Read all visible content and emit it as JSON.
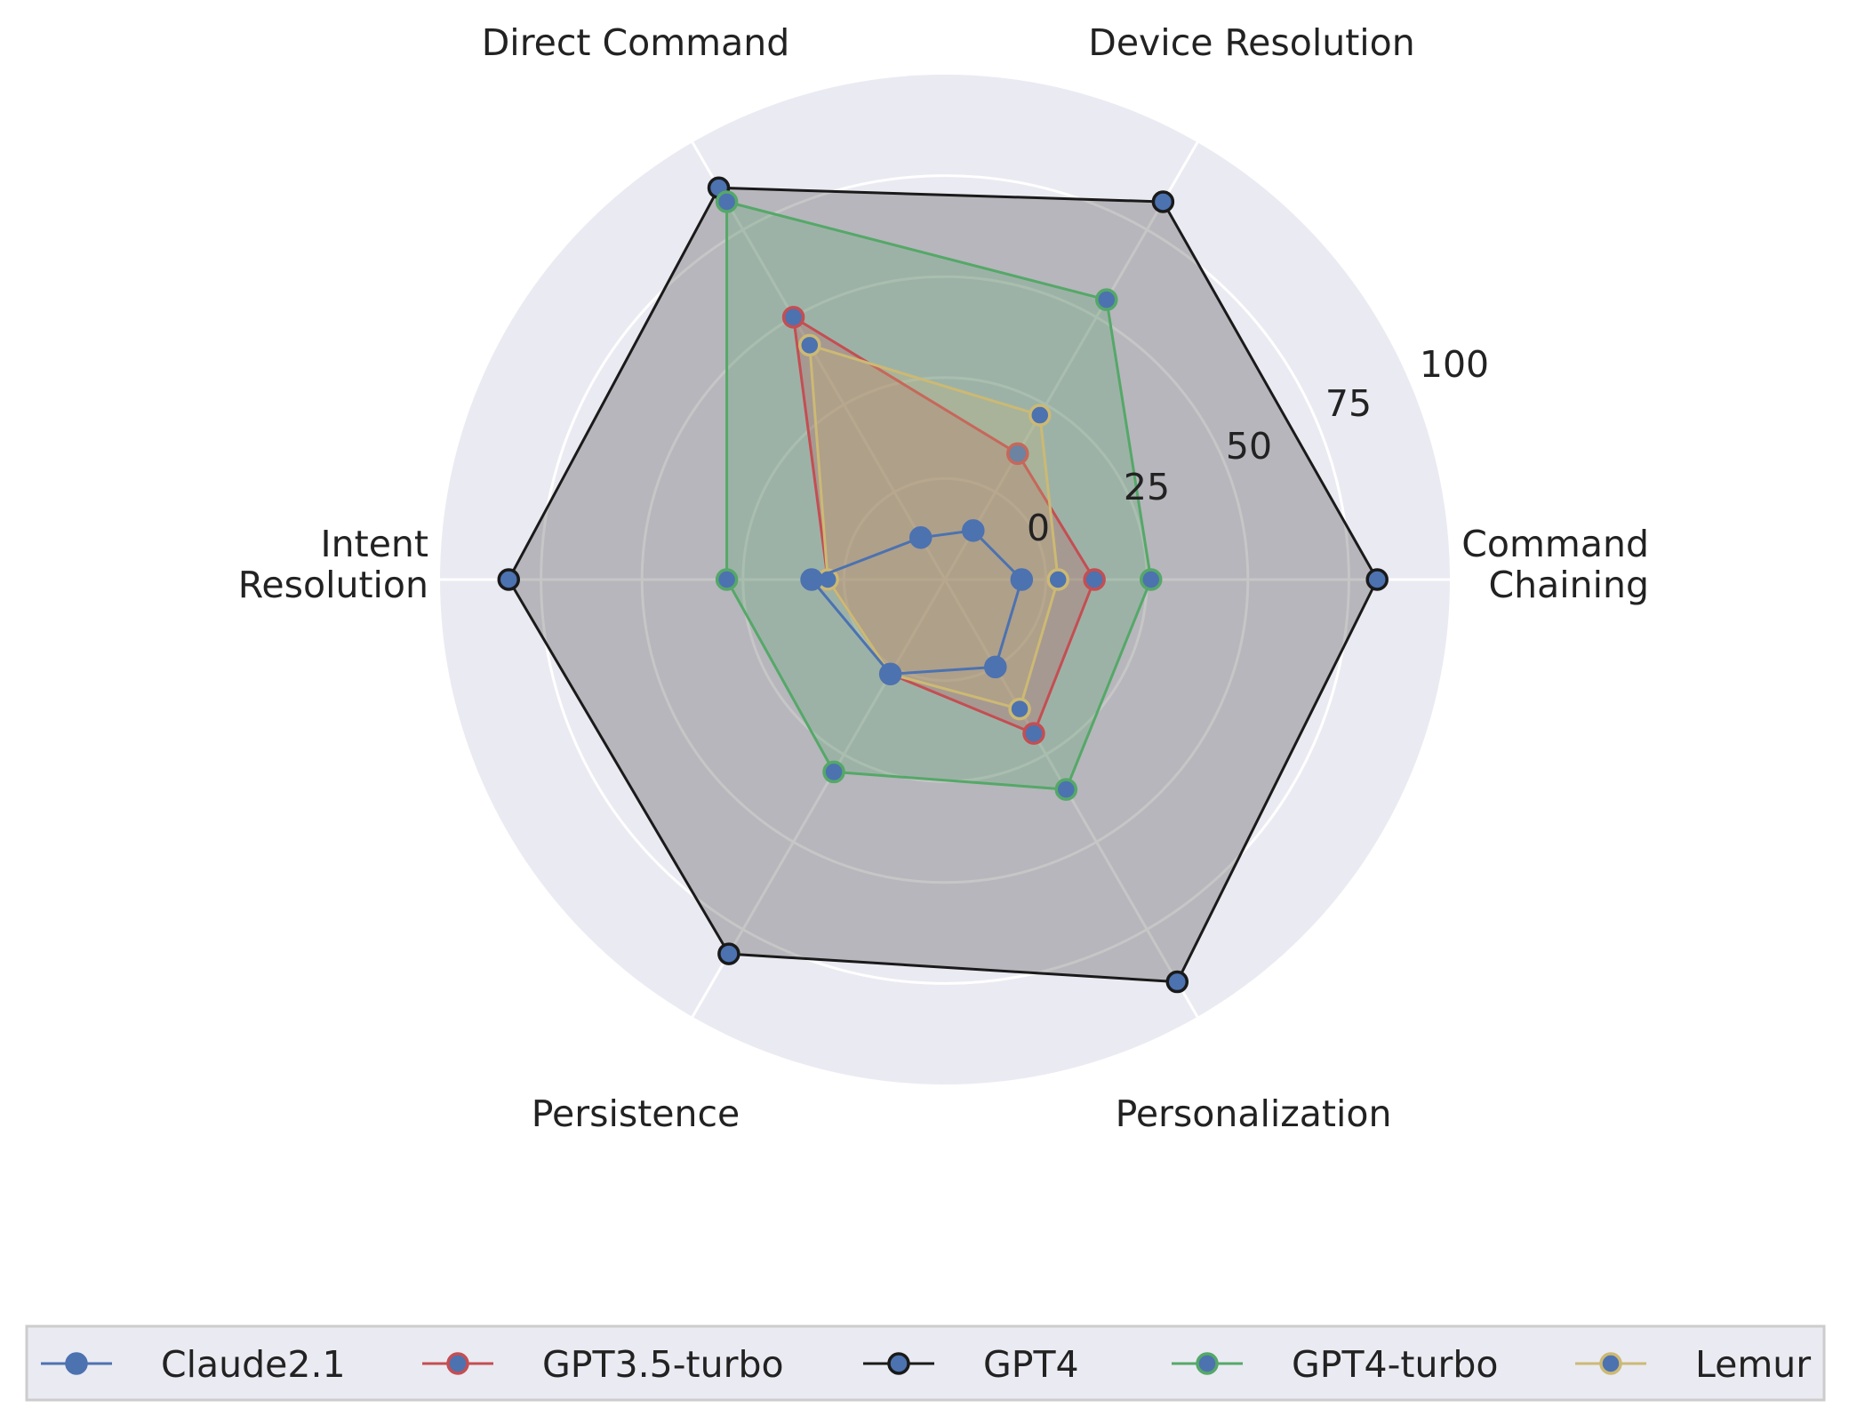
{
  "chart_data": {
    "type": "radar",
    "title": "",
    "axes": [
      [
        "Command",
        "Chaining"
      ],
      [
        "Device Resolution"
      ],
      [
        "Direct Command"
      ],
      [
        "Intent",
        "Resolution"
      ],
      [
        "Persistence"
      ],
      [
        "Personalization"
      ]
    ],
    "r_ticks": [
      "0",
      "25",
      "50",
      "75",
      "100"
    ],
    "r_range": [
      -25,
      100
    ],
    "grid": true,
    "legend_position": "bottom",
    "series": [
      {
        "name": "Claude2.1",
        "color": "#4C72B0",
        "values": [
          -6,
          -11,
          -13,
          8,
          2,
          0
        ],
        "fill": false
      },
      {
        "name": "GPT3.5-turbo",
        "color": "#C44E52",
        "values": [
          12,
          11,
          50,
          4,
          2,
          19
        ],
        "fill": true
      },
      {
        "name": "GPT4",
        "color": "#1A1A1A",
        "values": [
          82,
          83,
          87,
          83,
          82,
          90
        ],
        "fill": true
      },
      {
        "name": "GPT4-turbo",
        "color": "#55A868",
        "values": [
          26,
          55,
          83,
          29,
          30,
          35
        ],
        "fill": true
      },
      {
        "name": "Lemur",
        "color": "#CCB974",
        "values": [
          3,
          22,
          42,
          4,
          2,
          12
        ],
        "fill": true
      }
    ]
  }
}
